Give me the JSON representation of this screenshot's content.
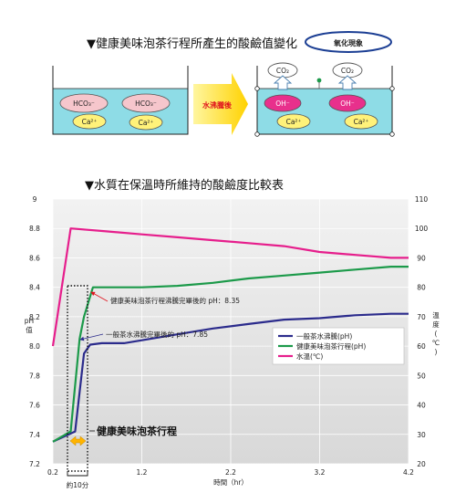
{
  "diagram": {
    "title": "▼健康美味泡茶行程所產生的酸鹼值變化",
    "badge": "氧化現象",
    "arrow_label": "水沸騰後",
    "left_tank": {
      "ions": [
        "HCO₃⁻",
        "HCO₃⁻",
        "Ca²⁺",
        "Ca²⁺"
      ]
    },
    "right_tank": {
      "gas": [
        "CO₂",
        "CO₂"
      ],
      "ions": [
        "OH⁻",
        "OH⁻",
        "Ca²⁺",
        "Ca²⁺"
      ]
    },
    "colors": {
      "arrow": "#ffd200",
      "arrow_text": "#e0141e",
      "hco3": "#f6c6cc",
      "oh": "#e8308c",
      "ca": "#fff27a",
      "water": "#8edce6"
    }
  },
  "chart_data": {
    "title": "▼水質在保溫時所維持的酸鹼度比較表",
    "type": "line",
    "xlabel": "時間（hr）",
    "ylabel_left": "pH值",
    "ylabel_right": "溫度(℃)",
    "xlim": [
      0.2,
      4.2
    ],
    "x_ticks": [
      "0.2",
      "1.2",
      "2.2",
      "3.2",
      "4.2"
    ],
    "ylim_left": [
      7.2,
      9.0
    ],
    "y_ticks_left": [
      "7.2",
      "7.4",
      "7.6",
      "7.8",
      "8.0",
      "8.2",
      "8.4",
      "8.6",
      "8.8",
      "9"
    ],
    "ylim_right": [
      20,
      110
    ],
    "y_ticks_right": [
      "20",
      "30",
      "40",
      "50",
      "60",
      "70",
      "80",
      "90",
      "100",
      "110"
    ],
    "legend_position": "right-middle",
    "series": [
      {
        "name": "一般茶水沸騰(pH)",
        "color": "#2b2b8c",
        "axis": "left",
        "x": [
          0.2,
          0.45,
          0.55,
          0.62,
          0.75,
          1.0,
          1.3,
          1.6,
          2.0,
          2.4,
          2.8,
          3.2,
          3.6,
          4.0,
          4.2
        ],
        "y": [
          7.35,
          7.42,
          7.95,
          8.01,
          8.02,
          8.02,
          8.05,
          8.08,
          8.12,
          8.15,
          8.18,
          8.19,
          8.21,
          8.22,
          8.22
        ]
      },
      {
        "name": "健康美味泡茶行程(pH)",
        "color": "#1c9a4a",
        "axis": "left",
        "x": [
          0.2,
          0.4,
          0.5,
          0.55,
          0.65,
          0.8,
          1.2,
          1.6,
          2.0,
          2.4,
          2.8,
          3.2,
          3.6,
          4.0,
          4.2
        ],
        "y": [
          7.35,
          7.42,
          8.05,
          8.2,
          8.4,
          8.4,
          8.4,
          8.41,
          8.43,
          8.46,
          8.48,
          8.5,
          8.52,
          8.54,
          8.54
        ]
      },
      {
        "name": "水溫(℃)",
        "color": "#e61e8c",
        "axis": "right",
        "x": [
          0.2,
          0.4,
          0.8,
          1.2,
          1.6,
          2.0,
          2.4,
          2.8,
          3.2,
          3.6,
          4.0,
          4.2
        ],
        "y": [
          60,
          100,
          99,
          98,
          97,
          96,
          95,
          94,
          92,
          91,
          90,
          90
        ]
      }
    ],
    "annotations": [
      {
        "text": "健康美味泡茶行程沸騰完畢後的 pH：8.35"
      },
      {
        "text": "一般茶水沸騰完畢後的 pH：7.85"
      },
      {
        "text": "健康美味泡茶行程"
      },
      {
        "text": "約10分"
      }
    ]
  }
}
